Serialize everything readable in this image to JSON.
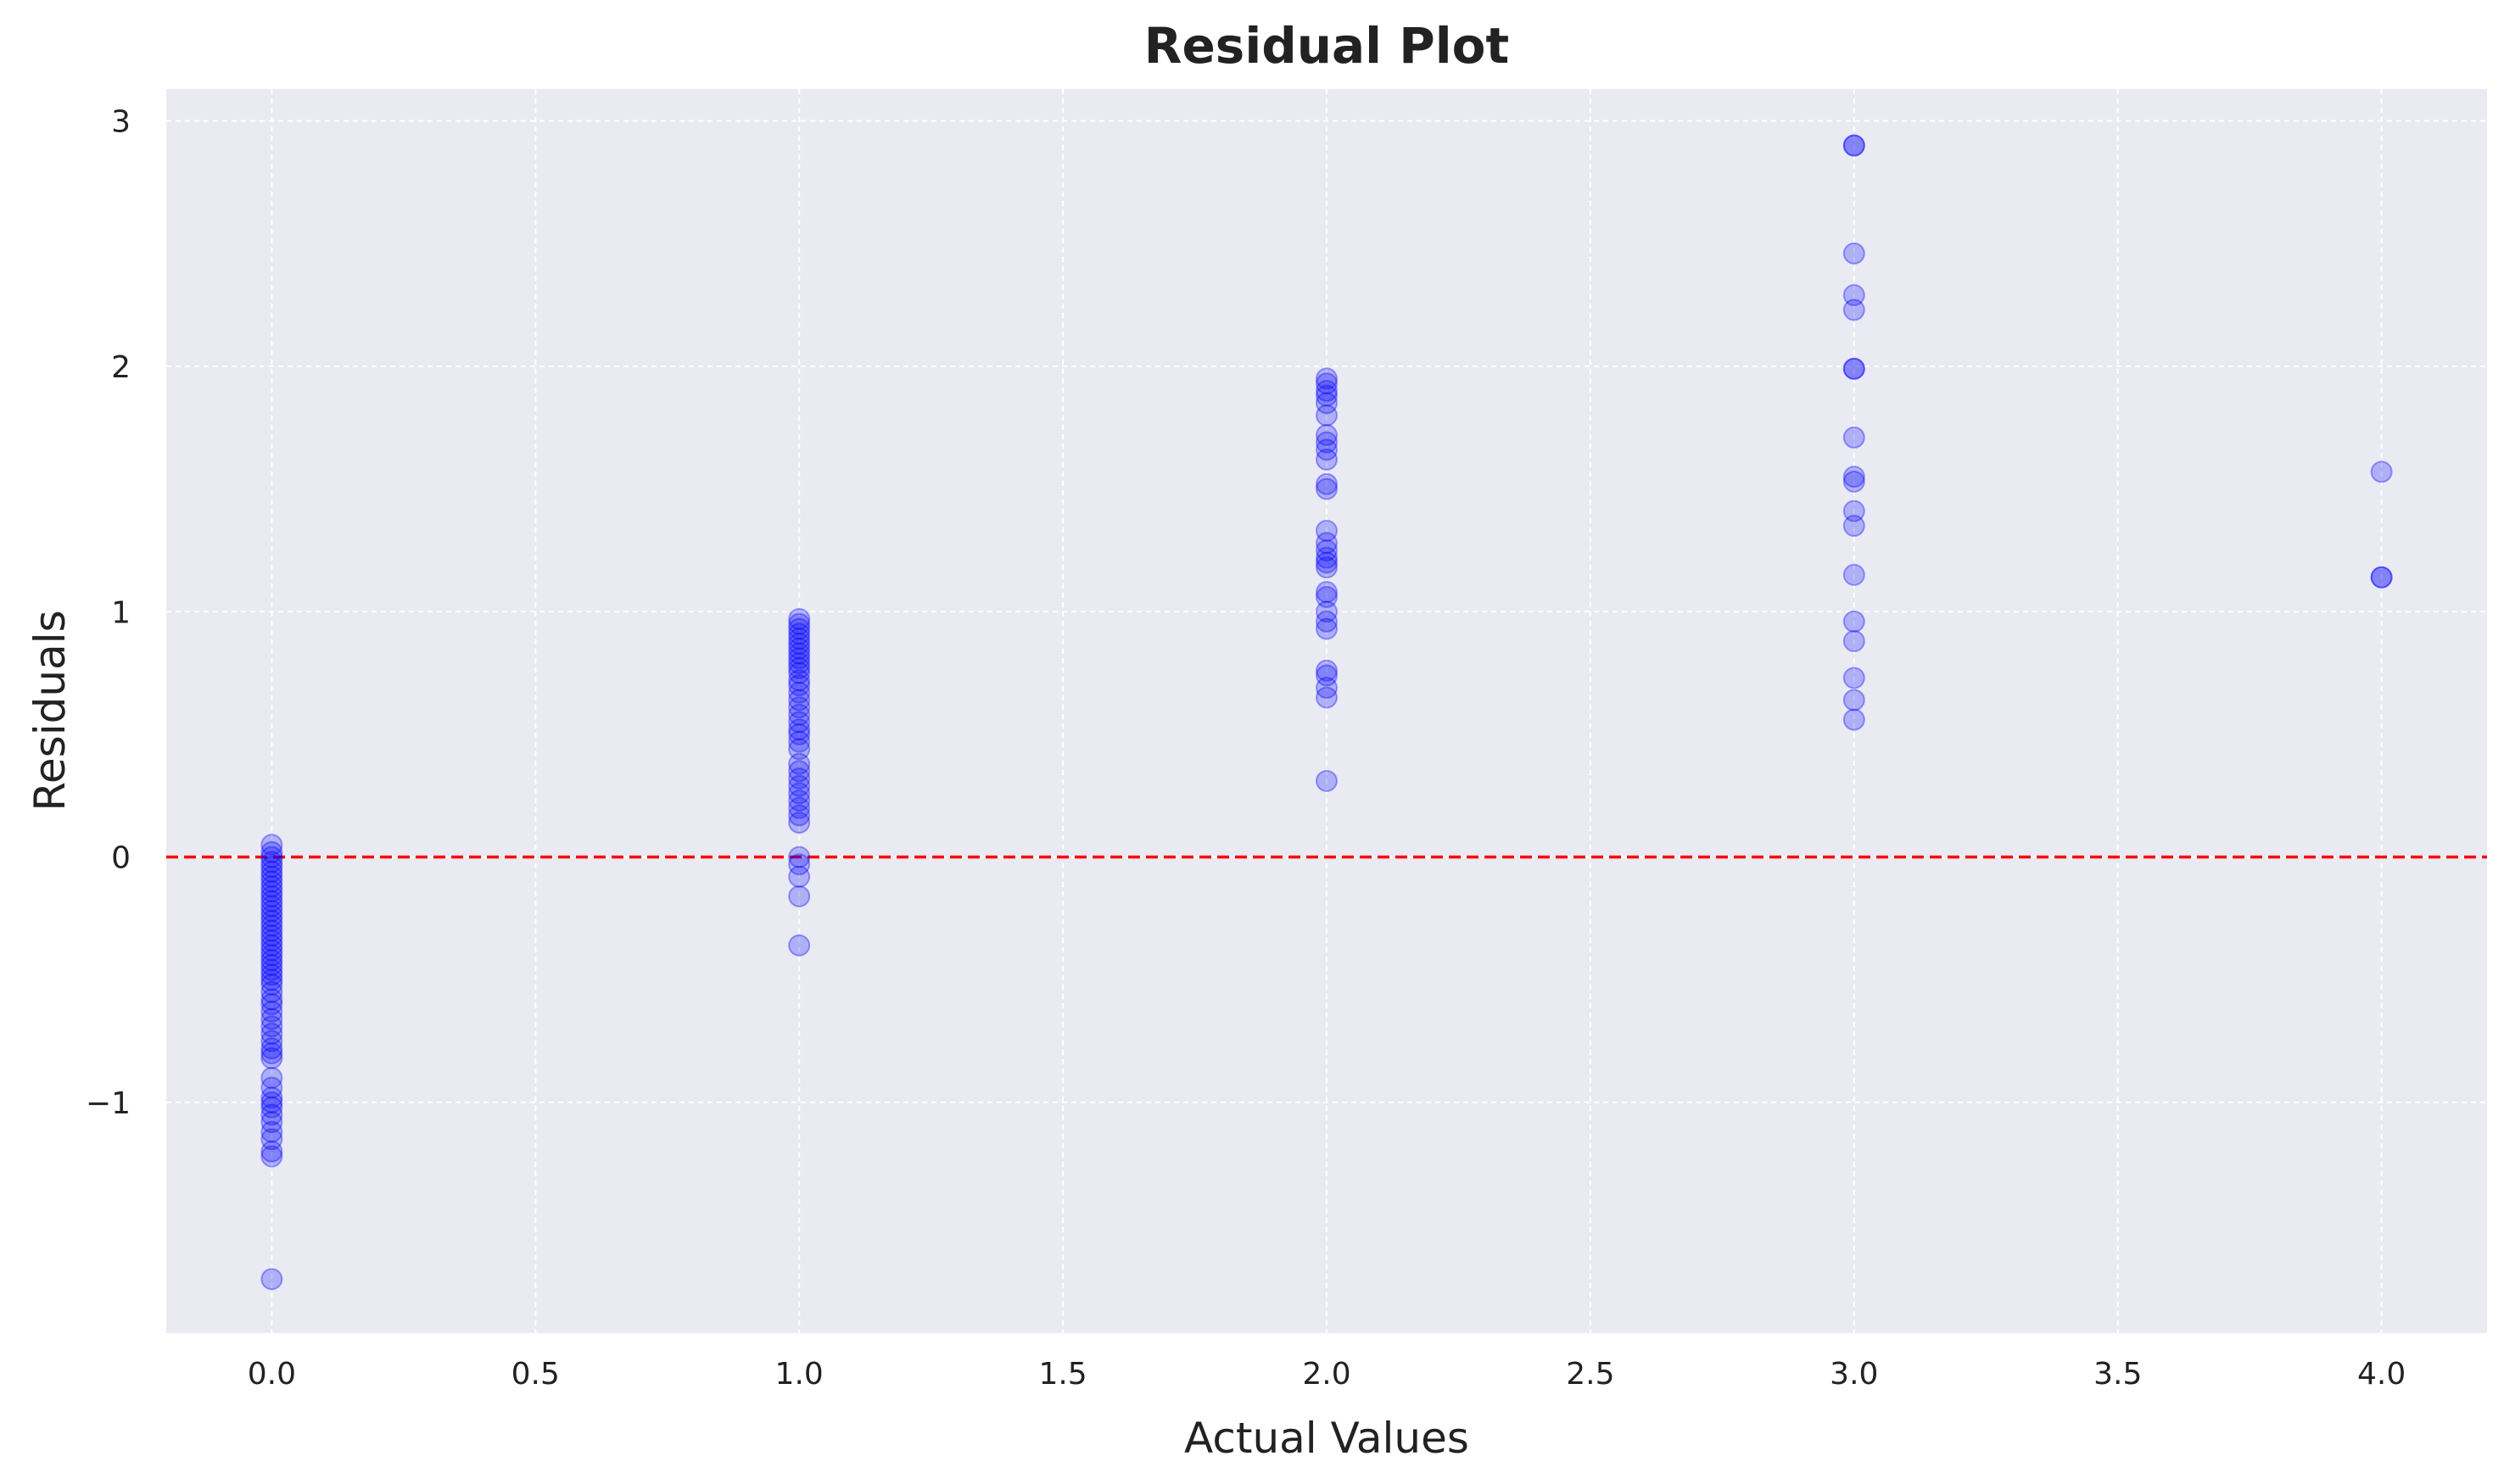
{
  "chart_data": {
    "type": "scatter",
    "title": "Residual Plot",
    "xlabel": "Actual Values",
    "ylabel": "Residuals",
    "xlim": [
      -0.2,
      4.2
    ],
    "ylim": [
      -1.94,
      3.13
    ],
    "xticks": [
      0.0,
      0.5,
      1.0,
      1.5,
      2.0,
      2.5,
      3.0,
      3.5,
      4.0
    ],
    "xtick_labels": [
      "0.0",
      "0.5",
      "1.0",
      "1.5",
      "2.0",
      "2.5",
      "3.0",
      "3.5",
      "4.0"
    ],
    "yticks": [
      -1,
      0,
      1,
      2,
      3
    ],
    "ytick_labels": [
      "−1",
      "0",
      "1",
      "2",
      "3"
    ],
    "grid": true,
    "reference_line": {
      "y": 0,
      "style": "dashed",
      "color": "#ff0000"
    },
    "colors": {
      "background": "#eaeaf2",
      "grid": "#ffffff",
      "point": "#0000ff",
      "point_opacity": 0.25
    },
    "series": [
      {
        "points": [
          [
            0,
            0.05
          ],
          [
            0,
            0.02
          ],
          [
            0,
            0.0
          ],
          [
            0,
            -0.02
          ],
          [
            0,
            -0.04
          ],
          [
            0,
            -0.06
          ],
          [
            0,
            -0.08
          ],
          [
            0,
            -0.1
          ],
          [
            0,
            -0.12
          ],
          [
            0,
            -0.14
          ],
          [
            0,
            -0.16
          ],
          [
            0,
            -0.18
          ],
          [
            0,
            -0.2
          ],
          [
            0,
            -0.22
          ],
          [
            0,
            -0.24
          ],
          [
            0,
            -0.26
          ],
          [
            0,
            -0.28
          ],
          [
            0,
            -0.3
          ],
          [
            0,
            -0.32
          ],
          [
            0,
            -0.34
          ],
          [
            0,
            -0.36
          ],
          [
            0,
            -0.38
          ],
          [
            0,
            -0.4
          ],
          [
            0,
            -0.42
          ],
          [
            0,
            -0.44
          ],
          [
            0,
            -0.46
          ],
          [
            0,
            -0.48
          ],
          [
            0,
            -0.5
          ],
          [
            0,
            -0.52
          ],
          [
            0,
            -0.55
          ],
          [
            0,
            -0.58
          ],
          [
            0,
            -0.6
          ],
          [
            0,
            -0.63
          ],
          [
            0,
            -0.66
          ],
          [
            0,
            -0.69
          ],
          [
            0,
            -0.72
          ],
          [
            0,
            -0.75
          ],
          [
            0,
            -0.78
          ],
          [
            0,
            -0.8
          ],
          [
            0,
            -0.82
          ],
          [
            0,
            -0.9
          ],
          [
            0,
            -0.94
          ],
          [
            0,
            -0.98
          ],
          [
            0,
            -1.0
          ],
          [
            0,
            -1.02
          ],
          [
            0,
            -1.05
          ],
          [
            0,
            -1.08
          ],
          [
            0,
            -1.12
          ],
          [
            0,
            -1.15
          ],
          [
            0,
            -1.2
          ],
          [
            0,
            -1.22
          ],
          [
            0,
            -1.72
          ],
          [
            1,
            0.97
          ],
          [
            1,
            0.95
          ],
          [
            1,
            0.93
          ],
          [
            1,
            0.91
          ],
          [
            1,
            0.89
          ],
          [
            1,
            0.87
          ],
          [
            1,
            0.85
          ],
          [
            1,
            0.83
          ],
          [
            1,
            0.81
          ],
          [
            1,
            0.79
          ],
          [
            1,
            0.77
          ],
          [
            1,
            0.75
          ],
          [
            1,
            0.72
          ],
          [
            1,
            0.7
          ],
          [
            1,
            0.67
          ],
          [
            1,
            0.64
          ],
          [
            1,
            0.61
          ],
          [
            1,
            0.58
          ],
          [
            1,
            0.55
          ],
          [
            1,
            0.52
          ],
          [
            1,
            0.5
          ],
          [
            1,
            0.47
          ],
          [
            1,
            0.44
          ],
          [
            1,
            0.38
          ],
          [
            1,
            0.35
          ],
          [
            1,
            0.32
          ],
          [
            1,
            0.29
          ],
          [
            1,
            0.26
          ],
          [
            1,
            0.23
          ],
          [
            1,
            0.2
          ],
          [
            1,
            0.17
          ],
          [
            1,
            0.14
          ],
          [
            1,
            0.0
          ],
          [
            1,
            -0.03
          ],
          [
            1,
            -0.08
          ],
          [
            1,
            -0.16
          ],
          [
            1,
            -0.36
          ],
          [
            2,
            1.95
          ],
          [
            2,
            1.93
          ],
          [
            2,
            1.9
          ],
          [
            2,
            1.88
          ],
          [
            2,
            1.85
          ],
          [
            2,
            1.8
          ],
          [
            2,
            1.72
          ],
          [
            2,
            1.69
          ],
          [
            2,
            1.66
          ],
          [
            2,
            1.62
          ],
          [
            2,
            1.52
          ],
          [
            2,
            1.5
          ],
          [
            2,
            1.33
          ],
          [
            2,
            1.28
          ],
          [
            2,
            1.25
          ],
          [
            2,
            1.22
          ],
          [
            2,
            1.2
          ],
          [
            2,
            1.18
          ],
          [
            2,
            1.08
          ],
          [
            2,
            1.06
          ],
          [
            2,
            1.0
          ],
          [
            2,
            0.96
          ],
          [
            2,
            0.93
          ],
          [
            2,
            0.76
          ],
          [
            2,
            0.74
          ],
          [
            2,
            0.69
          ],
          [
            2,
            0.65
          ],
          [
            2,
            0.31
          ],
          [
            3,
            2.9
          ],
          [
            3,
            2.9
          ],
          [
            3,
            2.46
          ],
          [
            3,
            2.29
          ],
          [
            3,
            2.23
          ],
          [
            3,
            1.99
          ],
          [
            3,
            1.99
          ],
          [
            3,
            1.71
          ],
          [
            3,
            1.55
          ],
          [
            3,
            1.53
          ],
          [
            3,
            1.41
          ],
          [
            3,
            1.35
          ],
          [
            3,
            1.15
          ],
          [
            3,
            0.96
          ],
          [
            3,
            0.88
          ],
          [
            3,
            0.73
          ],
          [
            3,
            0.64
          ],
          [
            3,
            0.56
          ],
          [
            4,
            1.57
          ],
          [
            4,
            1.14
          ],
          [
            4,
            1.14
          ]
        ]
      }
    ]
  }
}
